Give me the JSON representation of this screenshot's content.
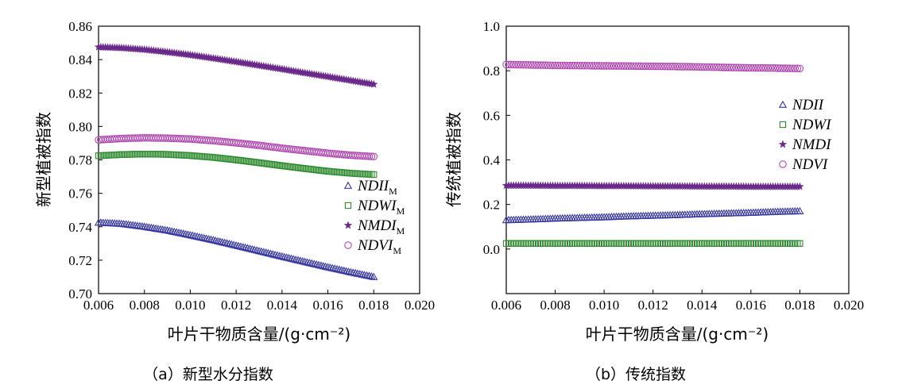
{
  "colors": {
    "NDII": "#3a3aa0",
    "NDWI": "#2e8b2e",
    "NMDI": "#6a2a8a",
    "NDVI": "#b04ab0"
  },
  "chart_data": [
    {
      "type": "scatter",
      "panel_caption": "（a）新型水分指数",
      "xlabel": "叶片干物质含量/(g·cm⁻²)",
      "ylabel": "新型植被指数",
      "xlim": [
        0.006,
        0.02
      ],
      "ylim": [
        0.7,
        0.86
      ],
      "xticks": [
        "0.006",
        "0.008",
        "0.010",
        "0.012",
        "0.014",
        "0.016",
        "0.018",
        "0.020"
      ],
      "yticks": [
        "0.70",
        "0.72",
        "0.74",
        "0.76",
        "0.78",
        "0.80",
        "0.82",
        "0.84",
        "0.86"
      ],
      "x": [
        0.006,
        0.007,
        0.008,
        0.009,
        0.01,
        0.011,
        0.012,
        0.013,
        0.014,
        0.015,
        0.016,
        0.017,
        0.018
      ],
      "legend_position": "right",
      "series": [
        {
          "key": "NDII",
          "name": "NDII",
          "sub": "M",
          "marker": "triangle",
          "values": [
            0.7425,
            0.7418,
            0.74,
            0.7378,
            0.735,
            0.732,
            0.7288,
            0.7255,
            0.7222,
            0.719,
            0.7158,
            0.7128,
            0.71
          ]
        },
        {
          "key": "NDWI",
          "name": "NDWI",
          "sub": "M",
          "marker": "square",
          "values": [
            0.7825,
            0.7832,
            0.7835,
            0.7833,
            0.7826,
            0.7815,
            0.78,
            0.7783,
            0.7765,
            0.7748,
            0.7732,
            0.772,
            0.7712
          ]
        },
        {
          "key": "NMDI",
          "name": "NMDI",
          "sub": "M",
          "marker": "star",
          "values": [
            0.8475,
            0.847,
            0.846,
            0.8445,
            0.8428,
            0.8408,
            0.8387,
            0.8365,
            0.8343,
            0.832,
            0.8298,
            0.8275,
            0.8252
          ]
        },
        {
          "key": "NDVI",
          "name": "NDVI",
          "sub": "M",
          "marker": "circle",
          "values": [
            0.792,
            0.7928,
            0.7932,
            0.793,
            0.7925,
            0.7915,
            0.7902,
            0.7887,
            0.787,
            0.7855,
            0.784,
            0.7828,
            0.782
          ]
        }
      ]
    },
    {
      "type": "scatter",
      "panel_caption": "（b）传统指数",
      "xlabel": "叶片干物质含量/(g·cm⁻²)",
      "ylabel": "传统植被指数",
      "xlim": [
        0.006,
        0.02
      ],
      "ylim": [
        -0.2,
        1.0
      ],
      "xticks": [
        "0.006",
        "0.008",
        "0.010",
        "0.012",
        "0.014",
        "0.016",
        "0.018",
        "0.020"
      ],
      "yticks": [
        "0.0",
        "0.2",
        "0.4",
        "0.6",
        "0.8",
        "1.0"
      ],
      "x": [
        0.006,
        0.007,
        0.008,
        0.009,
        0.01,
        0.011,
        0.012,
        0.013,
        0.014,
        0.015,
        0.016,
        0.017,
        0.018
      ],
      "legend_position": "upper right",
      "series": [
        {
          "key": "NDII",
          "name": "NDII",
          "marker": "triangle",
          "values": [
            0.13,
            0.133,
            0.137,
            0.14,
            0.143,
            0.147,
            0.15,
            0.153,
            0.157,
            0.16,
            0.163,
            0.167,
            0.17
          ]
        },
        {
          "key": "NDWI",
          "name": "NDWI",
          "marker": "square",
          "values": [
            0.025,
            0.025,
            0.025,
            0.025,
            0.025,
            0.025,
            0.025,
            0.025,
            0.025,
            0.025,
            0.025,
            0.025,
            0.025
          ]
        },
        {
          "key": "NMDI",
          "name": "NMDI",
          "marker": "star",
          "values": [
            0.285,
            0.285,
            0.284,
            0.284,
            0.283,
            0.283,
            0.282,
            0.282,
            0.281,
            0.281,
            0.28,
            0.28,
            0.28
          ]
        },
        {
          "key": "NDVI",
          "name": "NDVI",
          "marker": "circle",
          "values": [
            0.828,
            0.826,
            0.824,
            0.823,
            0.822,
            0.821,
            0.82,
            0.819,
            0.817,
            0.815,
            0.813,
            0.812,
            0.81
          ]
        }
      ]
    }
  ]
}
